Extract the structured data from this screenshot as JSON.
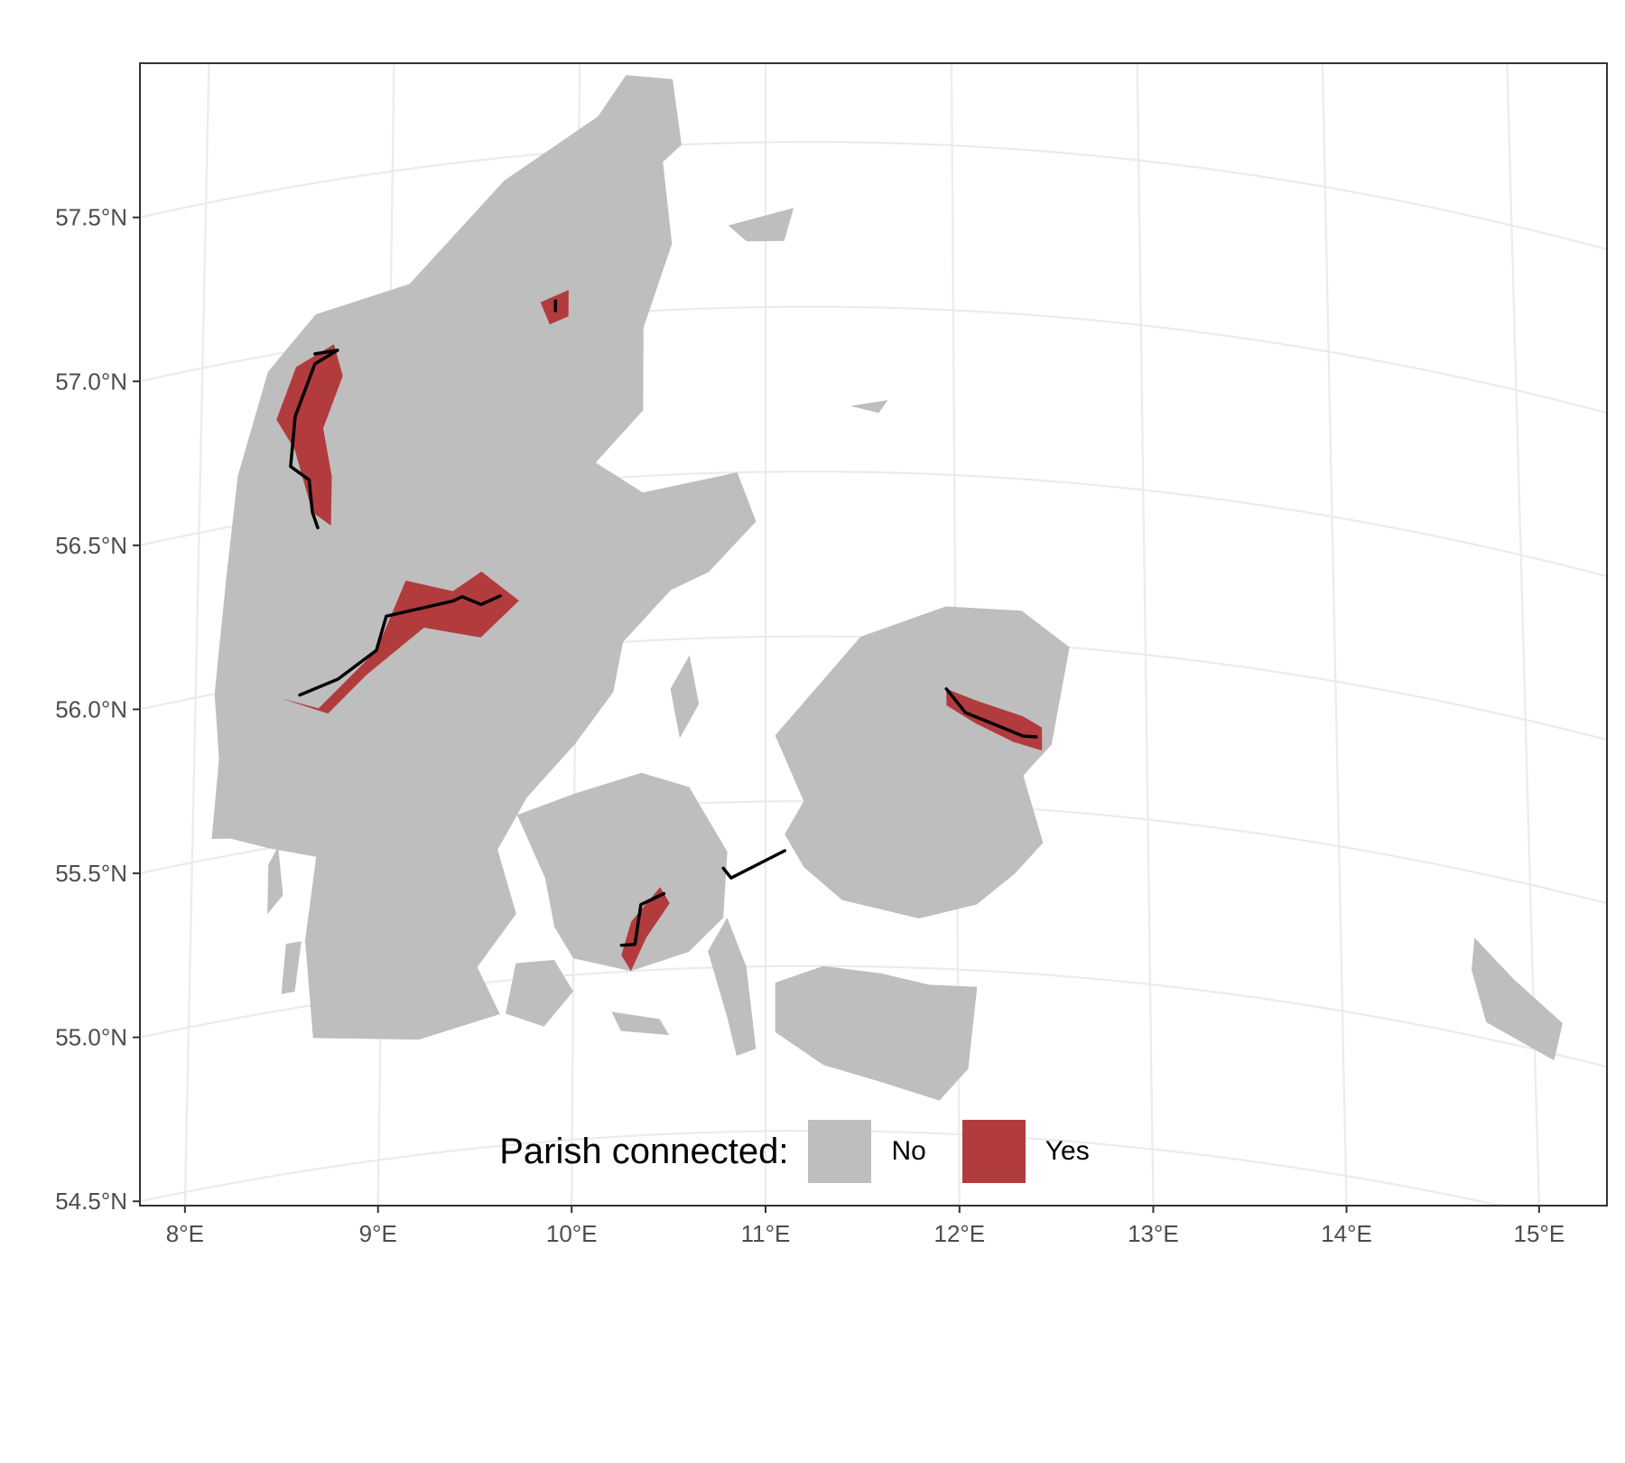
{
  "colors": {
    "land": "#bebebe",
    "connected": "#b23b3e",
    "route": "#000000",
    "grid": "#ebebeb",
    "frame": "#333333"
  },
  "chart_data": {
    "type": "map",
    "projection": "conic",
    "title": "",
    "xlabel": "",
    "ylabel": "",
    "xlim": [
      7.98,
      15.35
    ],
    "ylim": [
      54.45,
      57.9
    ],
    "grid": true,
    "x_ticks": [
      {
        "value": 8,
        "label": "8°E"
      },
      {
        "value": 9,
        "label": "9°E"
      },
      {
        "value": 10,
        "label": "10°E"
      },
      {
        "value": 11,
        "label": "11°E"
      },
      {
        "value": 12,
        "label": "12°E"
      },
      {
        "value": 13,
        "label": "13°E"
      },
      {
        "value": 14,
        "label": "14°E"
      },
      {
        "value": 15,
        "label": "15°E"
      }
    ],
    "y_ticks": [
      {
        "value": 54.5,
        "label": "54.5°N"
      },
      {
        "value": 55.0,
        "label": "55.0°N"
      },
      {
        "value": 55.5,
        "label": "55.5°N"
      },
      {
        "value": 56.0,
        "label": "56.0°N"
      },
      {
        "value": 56.5,
        "label": "56.5°N"
      },
      {
        "value": 57.0,
        "label": "57.0°N"
      },
      {
        "value": 57.5,
        "label": "57.5°N"
      }
    ],
    "legend": {
      "title": "Parish connected:",
      "position": "bottom",
      "items": [
        {
          "label": "No",
          "color": "#bebebe"
        },
        {
          "label": "Yes",
          "color": "#b23b3e"
        }
      ]
    },
    "land": [
      {
        "name": "jutland",
        "coords": [
          [
            8.2,
            55.55
          ],
          [
            8.1,
            55.56
          ],
          [
            8.13,
            55.8
          ],
          [
            8.1,
            56.0
          ],
          [
            8.15,
            56.35
          ],
          [
            8.2,
            56.65
          ],
          [
            8.35,
            56.95
          ],
          [
            8.6,
            57.1
          ],
          [
            9.1,
            57.15
          ],
          [
            9.6,
            57.43
          ],
          [
            10.1,
            57.6
          ],
          [
            10.25,
            57.72
          ],
          [
            10.5,
            57.7
          ],
          [
            10.55,
            57.5
          ],
          [
            10.45,
            57.45
          ],
          [
            10.5,
            57.2
          ],
          [
            10.35,
            56.95
          ],
          [
            10.35,
            56.7
          ],
          [
            10.1,
            56.55
          ],
          [
            10.35,
            56.45
          ],
          [
            10.85,
            56.5
          ],
          [
            10.95,
            56.35
          ],
          [
            10.7,
            56.2
          ],
          [
            10.5,
            56.15
          ],
          [
            10.25,
            56.0
          ],
          [
            10.2,
            55.85
          ],
          [
            10.0,
            55.7
          ],
          [
            9.75,
            55.55
          ],
          [
            9.6,
            55.4
          ],
          [
            9.7,
            55.2
          ],
          [
            9.5,
            55.05
          ],
          [
            9.62,
            54.9
          ],
          [
            9.2,
            54.85
          ],
          [
            8.65,
            54.9
          ],
          [
            8.6,
            55.2
          ],
          [
            8.65,
            55.45
          ],
          [
            8.4,
            55.5
          ]
        ]
      },
      {
        "name": "funen",
        "coords": [
          [
            9.7,
            55.5
          ],
          [
            10.0,
            55.55
          ],
          [
            10.35,
            55.6
          ],
          [
            10.6,
            55.55
          ],
          [
            10.8,
            55.35
          ],
          [
            10.78,
            55.15
          ],
          [
            10.6,
            55.05
          ],
          [
            10.3,
            55.0
          ],
          [
            10.0,
            55.05
          ],
          [
            9.9,
            55.15
          ],
          [
            9.85,
            55.3
          ]
        ]
      },
      {
        "name": "zealand",
        "coords": [
          [
            11.05,
            55.7
          ],
          [
            11.5,
            56.0
          ],
          [
            11.95,
            56.1
          ],
          [
            12.35,
            56.1
          ],
          [
            12.6,
            56.0
          ],
          [
            12.5,
            55.7
          ],
          [
            12.35,
            55.6
          ],
          [
            12.45,
            55.4
          ],
          [
            12.3,
            55.3
          ],
          [
            12.1,
            55.2
          ],
          [
            11.8,
            55.15
          ],
          [
            11.4,
            55.2
          ],
          [
            11.2,
            55.3
          ],
          [
            11.1,
            55.4
          ],
          [
            11.2,
            55.5
          ]
        ]
      },
      {
        "name": "lolland-falster",
        "coords": [
          [
            11.05,
            54.95
          ],
          [
            11.3,
            55.0
          ],
          [
            11.6,
            54.98
          ],
          [
            11.85,
            54.95
          ],
          [
            12.1,
            54.95
          ],
          [
            12.05,
            54.7
          ],
          [
            11.9,
            54.6
          ],
          [
            11.6,
            54.65
          ],
          [
            11.3,
            54.7
          ],
          [
            11.05,
            54.8
          ]
        ]
      },
      {
        "name": "langeland",
        "coords": [
          [
            10.7,
            55.05
          ],
          [
            10.8,
            55.15
          ],
          [
            10.9,
            55.0
          ],
          [
            10.95,
            54.75
          ],
          [
            10.85,
            54.73
          ],
          [
            10.8,
            54.85
          ]
        ]
      },
      {
        "name": "als",
        "coords": [
          [
            9.7,
            55.05
          ],
          [
            9.9,
            55.05
          ],
          [
            10.0,
            54.95
          ],
          [
            9.85,
            54.85
          ],
          [
            9.65,
            54.9
          ]
        ]
      },
      {
        "name": "aero",
        "coords": [
          [
            10.2,
            54.88
          ],
          [
            10.45,
            54.85
          ],
          [
            10.5,
            54.8
          ],
          [
            10.25,
            54.82
          ]
        ]
      },
      {
        "name": "mors",
        "coords": [
          [
            8.6,
            56.8
          ],
          [
            8.9,
            56.95
          ],
          [
            8.95,
            56.75
          ],
          [
            8.8,
            56.65
          ]
        ]
      },
      {
        "name": "samso",
        "coords": [
          [
            10.5,
            55.85
          ],
          [
            10.6,
            55.95
          ],
          [
            10.65,
            55.8
          ],
          [
            10.55,
            55.7
          ]
        ]
      },
      {
        "name": "laeso",
        "coords": [
          [
            10.8,
            57.25
          ],
          [
            11.15,
            57.3
          ],
          [
            11.1,
            57.2
          ],
          [
            10.9,
            57.2
          ]
        ]
      },
      {
        "name": "anholt",
        "coords": [
          [
            11.45,
            56.7
          ],
          [
            11.65,
            56.72
          ],
          [
            11.6,
            56.68
          ]
        ]
      },
      {
        "name": "fano",
        "coords": [
          [
            8.4,
            55.45
          ],
          [
            8.45,
            55.5
          ],
          [
            8.48,
            55.35
          ],
          [
            8.4,
            55.3
          ]
        ]
      },
      {
        "name": "romo",
        "coords": [
          [
            8.5,
            55.2
          ],
          [
            8.58,
            55.2
          ],
          [
            8.55,
            55.05
          ],
          [
            8.48,
            55.05
          ]
        ]
      },
      {
        "name": "bornholm",
        "coords": [
          [
            14.7,
            55.3
          ],
          [
            14.9,
            55.2
          ],
          [
            15.15,
            55.1
          ],
          [
            15.1,
            54.98
          ],
          [
            14.75,
            55.05
          ],
          [
            14.68,
            55.2
          ]
        ]
      }
    ],
    "connected_parishes": [
      {
        "name": "thy",
        "coords": [
          [
            8.4,
            56.8
          ],
          [
            8.5,
            56.95
          ],
          [
            8.7,
            57.0
          ],
          [
            8.75,
            56.9
          ],
          [
            8.65,
            56.75
          ],
          [
            8.7,
            56.6
          ],
          [
            8.7,
            56.45
          ],
          [
            8.6,
            56.5
          ],
          [
            8.5,
            56.7
          ]
        ]
      },
      {
        "name": "limfjord-east",
        "coords": [
          [
            9.8,
            57.05
          ],
          [
            9.95,
            57.08
          ],
          [
            9.95,
            57.0
          ],
          [
            9.85,
            56.98
          ]
        ]
      },
      {
        "name": "central-jutland",
        "coords": [
          [
            8.45,
            55.95
          ],
          [
            8.65,
            55.9
          ],
          [
            8.95,
            56.05
          ],
          [
            9.1,
            56.25
          ],
          [
            9.35,
            56.2
          ],
          [
            9.5,
            56.25
          ],
          [
            9.7,
            56.15
          ],
          [
            9.5,
            56.05
          ],
          [
            9.2,
            56.1
          ],
          [
            8.9,
            55.98
          ],
          [
            8.7,
            55.88
          ]
        ]
      },
      {
        "name": "north-zealand",
        "coords": [
          [
            11.95,
            55.85
          ],
          [
            12.1,
            55.82
          ],
          [
            12.35,
            55.78
          ],
          [
            12.45,
            55.75
          ],
          [
            12.45,
            55.68
          ],
          [
            12.3,
            55.7
          ],
          [
            12.1,
            55.75
          ],
          [
            11.95,
            55.8
          ]
        ]
      },
      {
        "name": "funen-south",
        "coords": [
          [
            10.25,
            55.05
          ],
          [
            10.3,
            55.15
          ],
          [
            10.45,
            55.25
          ],
          [
            10.5,
            55.2
          ],
          [
            10.38,
            55.1
          ],
          [
            10.3,
            55.0
          ]
        ]
      }
    ],
    "routes": [
      {
        "name": "route-thy",
        "coords": [
          [
            8.6,
            56.98
          ],
          [
            8.72,
            56.98
          ],
          [
            8.6,
            56.95
          ],
          [
            8.5,
            56.8
          ],
          [
            8.48,
            56.65
          ],
          [
            8.58,
            56.6
          ],
          [
            8.6,
            56.5
          ],
          [
            8.63,
            56.45
          ]
        ]
      },
      {
        "name": "route-limfjord",
        "coords": [
          [
            9.88,
            57.02
          ],
          [
            9.88,
            57.05
          ]
        ]
      },
      {
        "name": "route-central",
        "coords": [
          [
            8.55,
            55.95
          ],
          [
            8.75,
            55.98
          ],
          [
            8.95,
            56.05
          ],
          [
            9.0,
            56.15
          ],
          [
            9.35,
            56.17
          ],
          [
            9.4,
            56.18
          ],
          [
            9.5,
            56.15
          ],
          [
            9.6,
            56.17
          ]
        ]
      },
      {
        "name": "route-zealand",
        "coords": [
          [
            11.95,
            55.85
          ],
          [
            12.05,
            55.78
          ],
          [
            12.2,
            55.75
          ],
          [
            12.35,
            55.72
          ],
          [
            12.42,
            55.72
          ]
        ]
      },
      {
        "name": "route-funen",
        "coords": [
          [
            10.25,
            55.08
          ],
          [
            10.32,
            55.08
          ],
          [
            10.35,
            55.2
          ],
          [
            10.47,
            55.23
          ]
        ]
      },
      {
        "name": "route-great-belt",
        "coords": [
          [
            10.78,
            55.3
          ],
          [
            10.82,
            55.27
          ],
          [
            11.1,
            55.35
          ]
        ]
      }
    ]
  }
}
